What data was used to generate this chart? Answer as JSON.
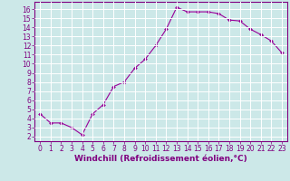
{
  "x": [
    0,
    1,
    2,
    3,
    4,
    5,
    6,
    7,
    8,
    9,
    10,
    11,
    12,
    13,
    14,
    15,
    16,
    17,
    18,
    19,
    20,
    21,
    22,
    23
  ],
  "y": [
    4.5,
    3.5,
    3.5,
    3.0,
    2.2,
    4.5,
    5.5,
    7.5,
    8.0,
    9.5,
    10.5,
    12.0,
    13.8,
    16.2,
    15.7,
    15.7,
    15.7,
    15.5,
    14.8,
    14.7,
    13.8,
    13.2,
    12.5,
    11.2
  ],
  "line_color": "#990099",
  "marker": "D",
  "marker_size": 2,
  "bg_color": "#cce8e8",
  "grid_color": "#b0d8d8",
  "xlabel": "Windchill (Refroidissement éolien,°C)",
  "ylabel": "",
  "xlim": [
    -0.5,
    23.5
  ],
  "ylim": [
    1.5,
    16.8
  ],
  "yticks": [
    2,
    3,
    4,
    5,
    6,
    7,
    8,
    9,
    10,
    11,
    12,
    13,
    14,
    15,
    16
  ],
  "xticks": [
    0,
    1,
    2,
    3,
    4,
    5,
    6,
    7,
    8,
    9,
    10,
    11,
    12,
    13,
    14,
    15,
    16,
    17,
    18,
    19,
    20,
    21,
    22,
    23
  ],
  "tick_color": "#800080",
  "tick_fontsize": 5.5,
  "xlabel_fontsize": 6.5,
  "spine_color": "#800080"
}
